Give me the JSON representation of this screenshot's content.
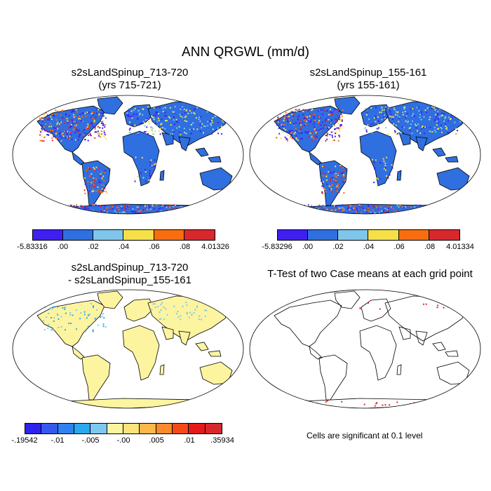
{
  "title": "ANN QRGWL (mm/d)",
  "panels": {
    "tl": {
      "line1": "s2sLandSpinup_713-720",
      "line2": "(yrs 715-721)"
    },
    "tr": {
      "line1": "s2sLandSpinup_155-161",
      "line2": "(yrs 155-161)"
    },
    "bl": {
      "line1": "s2sLandSpinup_713-720",
      "line2": "- s2sLandSpinup_155-161"
    },
    "br": {
      "line1": "T-Test of two Case means at each grid point",
      "line2": ""
    }
  },
  "legends": {
    "top_left": {
      "colors": [
        "#3f1ff0",
        "#2f6fe0",
        "#7fc6ea",
        "#f5e04a",
        "#f76e10",
        "#d7282e"
      ],
      "labels": [
        "-5.83316",
        ".00",
        ".02",
        ".04",
        ".06",
        ".08",
        "4.01326"
      ]
    },
    "top_right": {
      "colors": [
        "#3f1ff0",
        "#2f6fe0",
        "#7fc6ea",
        "#f5e04a",
        "#f76e10",
        "#d7282e"
      ],
      "labels": [
        "-5.83296",
        ".00",
        ".02",
        ".04",
        ".06",
        ".08",
        "4.01334"
      ]
    },
    "bottom_left": {
      "colors": [
        "#2e22f0",
        "#3559ef",
        "#2f82ef",
        "#29a8ef",
        "#7ec8f0",
        "#fdf4a0",
        "#fde37a",
        "#fdb84a",
        "#fd8a2a",
        "#f34a18",
        "#e41a1c",
        "#d7282e"
      ],
      "labels": [
        "-.19542",
        "-.01",
        "-.005",
        "-.00",
        ".005",
        ".01",
        ".35934"
      ]
    }
  },
  "note": "Cells are significant at 0.1 level",
  "map_colors": {
    "ocean": "#ffffff",
    "land_main": "#2f6fe0",
    "land_diff": "#fdf4a0",
    "outline": "#000000",
    "sig": "#d7282e"
  }
}
